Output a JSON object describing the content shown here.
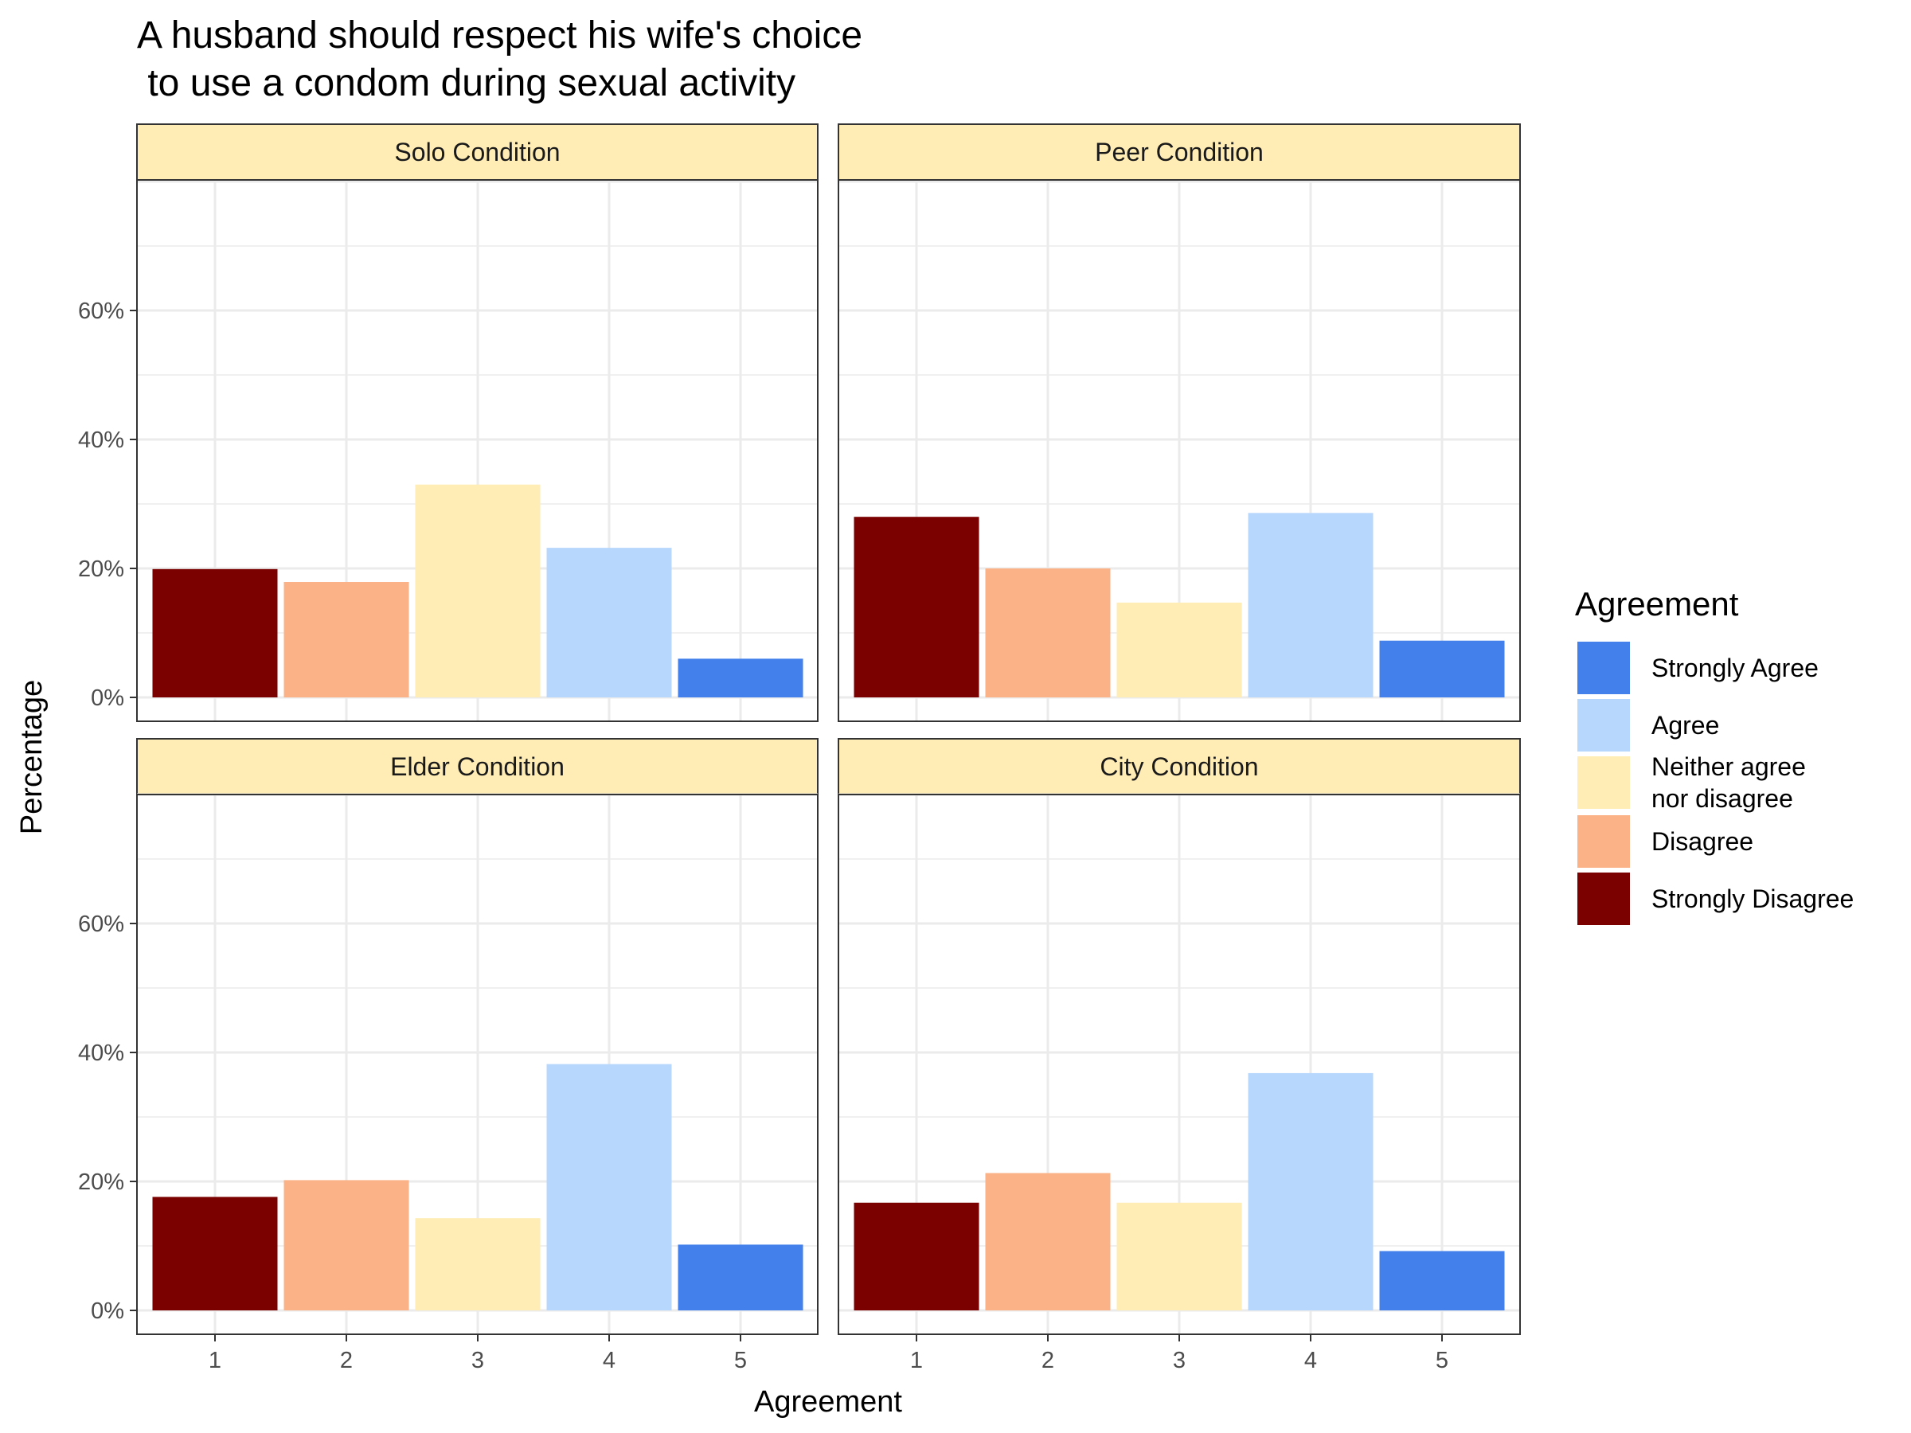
{
  "chart_data": {
    "type": "bar",
    "title_lines": [
      "A husband should respect his wife's choice",
      " to use a condom during sexual activity"
    ],
    "xlabel": "Agreement",
    "ylabel": "Percentage",
    "categories": [
      "1",
      "2",
      "3",
      "4",
      "5"
    ],
    "y_ticks": [
      "0%",
      "20%",
      "40%",
      "60%"
    ],
    "y_tick_values": [
      0,
      20,
      40,
      60
    ],
    "ylim": [
      0,
      80
    ],
    "grid": true,
    "facet_strip_color": "#FFEDB5",
    "category_colors": [
      "#7B0000",
      "#FBB287",
      "#FFEDB5",
      "#B8D7FD",
      "#4380EC"
    ],
    "panels": [
      {
        "name": "Solo Condition",
        "values": [
          19.9,
          17.9,
          33.0,
          23.2,
          6.0
        ]
      },
      {
        "name": "Peer Condition",
        "values": [
          28.0,
          20.0,
          14.7,
          28.6,
          8.8
        ]
      },
      {
        "name": "Elder Condition",
        "values": [
          17.6,
          20.2,
          14.3,
          38.2,
          10.2
        ]
      },
      {
        "name": "City Condition",
        "values": [
          16.7,
          21.3,
          16.7,
          36.8,
          9.2
        ]
      }
    ],
    "legend": {
      "title": "Agreement",
      "position": "right",
      "items": [
        {
          "label": "Strongly Agree",
          "color": "#4380EC"
        },
        {
          "label": "Agree",
          "color": "#B8D7FD"
        },
        {
          "label": "Neither agree\nnor disagree",
          "color": "#FFEDB5"
        },
        {
          "label": "Disagree",
          "color": "#FBB287"
        },
        {
          "label": "Strongly Disagree",
          "color": "#7B0000"
        }
      ]
    }
  }
}
